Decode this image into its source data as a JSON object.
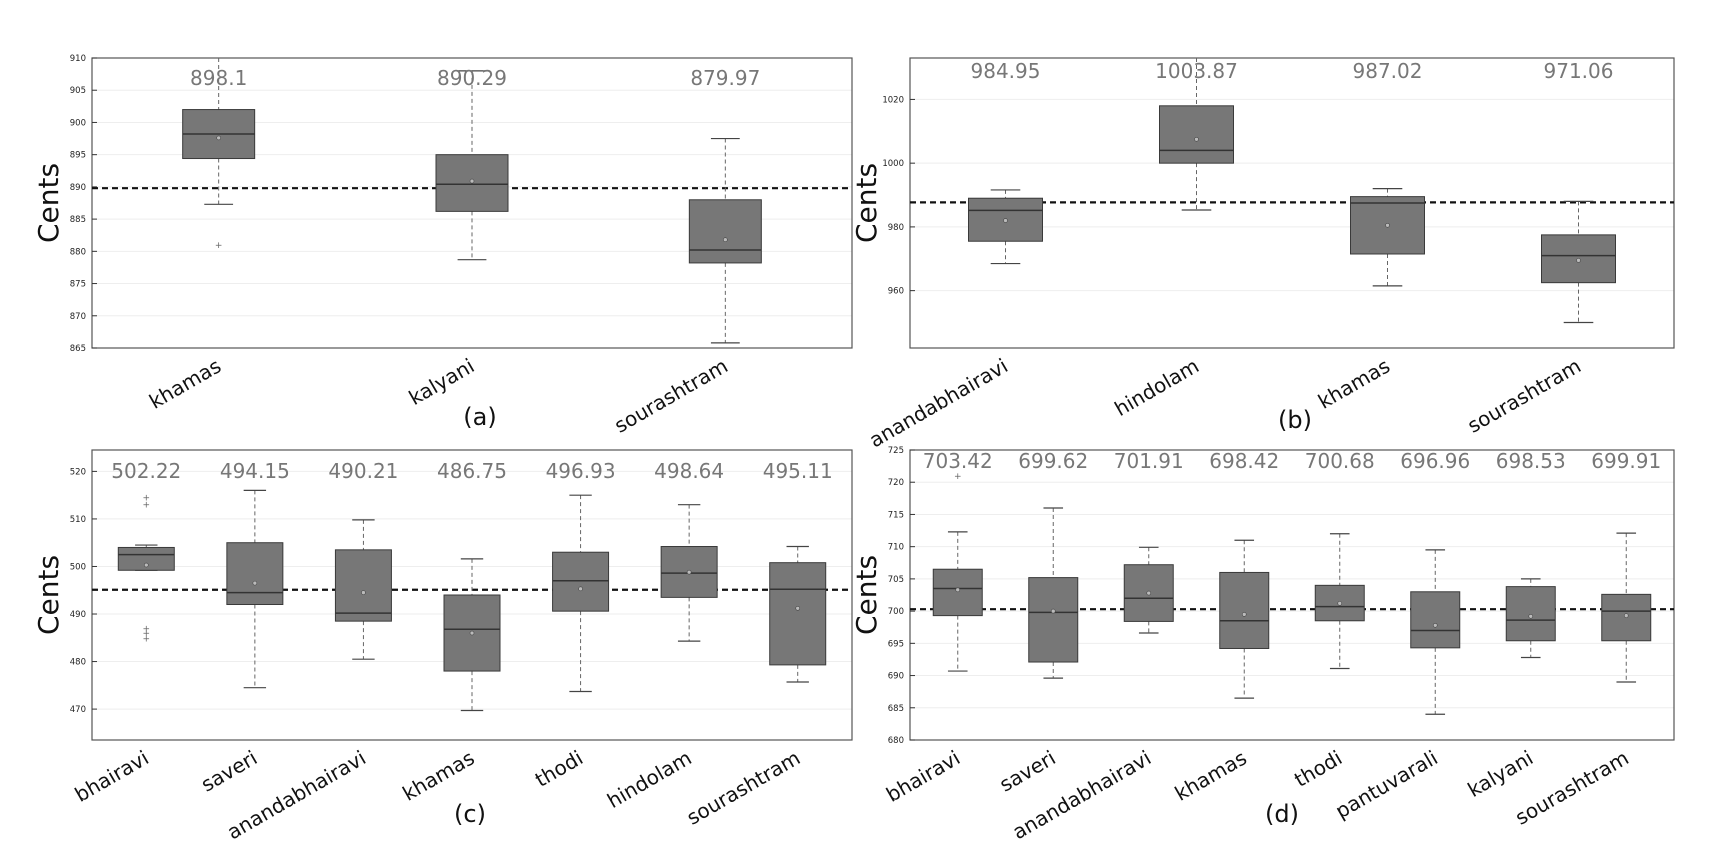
{
  "chart_data": [
    {
      "type": "box",
      "panel_label": "(a)",
      "ylabel": "Cents",
      "ylim": [
        865,
        910
      ],
      "yticks": [
        865,
        870,
        875,
        880,
        885,
        890,
        895,
        900,
        905,
        910
      ],
      "reference_line": 889.8,
      "categories": [
        "khamas",
        "kalyani",
        "sourashtram"
      ],
      "annotations": [
        "898.1",
        "890.29",
        "879.97"
      ],
      "boxes": [
        {
          "whisker_low": 887.3,
          "q1": 894.4,
          "median": 898.2,
          "q3": 902,
          "whisker_high": 911,
          "mean": 897.6,
          "fliers": [
            881
          ]
        },
        {
          "whisker_low": 878.7,
          "q1": 886.2,
          "median": 890.4,
          "q3": 895,
          "whisker_high": 908,
          "mean": 890.9,
          "fliers": []
        },
        {
          "whisker_low": 865.8,
          "q1": 878.2,
          "median": 880.2,
          "q3": 888,
          "whisker_high": 897.5,
          "mean": 881.8,
          "fliers": []
        }
      ]
    },
    {
      "type": "box",
      "panel_label": "(b)",
      "ylabel": "Cents",
      "ylim": [
        942,
        1033
      ],
      "yticks": [
        960,
        980,
        1000,
        1020
      ],
      "reference_line": 987.7,
      "categories": [
        "anandabhairavi",
        "hindolam",
        "khamas",
        "sourashtram"
      ],
      "annotations": [
        "984.95",
        "1003.87",
        "987.02",
        "971.06"
      ],
      "boxes": [
        {
          "whisker_low": 968.5,
          "q1": 975.5,
          "median": 985.2,
          "q3": 989,
          "whisker_high": 991.6,
          "mean": 982,
          "fliers": []
        },
        {
          "whisker_low": 985.3,
          "q1": 1000,
          "median": 1004,
          "q3": 1018,
          "whisker_high": 1036,
          "mean": 1007.5,
          "fliers": []
        },
        {
          "whisker_low": 961.5,
          "q1": 971.5,
          "median": 987.5,
          "q3": 989.5,
          "whisker_high": 992,
          "mean": 980.5,
          "fliers": []
        },
        {
          "whisker_low": 950,
          "q1": 962.5,
          "median": 971,
          "q3": 977.5,
          "whisker_high": 988,
          "mean": 969.5,
          "fliers": []
        }
      ]
    },
    {
      "type": "box",
      "panel_label": "(c)",
      "ylabel": "Cents",
      "ylim": [
        463.5,
        524.5
      ],
      "yticks": [
        470,
        480,
        490,
        500,
        510,
        520
      ],
      "reference_line": 495.1,
      "categories": [
        "bhairavi",
        "saveri",
        "anandabhairavi",
        "khamas",
        "thodi",
        "hindolam",
        "sourashtram"
      ],
      "annotations": [
        "502.22",
        "494.15",
        "490.21",
        "486.75",
        "496.93",
        "498.64",
        "495.11"
      ],
      "boxes": [
        {
          "whisker_low": 499.2,
          "q1": 499.2,
          "median": 502.5,
          "q3": 504,
          "whisker_high": 504.5,
          "mean": 500.3,
          "fliers": [
            514.5,
            513,
            487,
            486,
            484.8
          ]
        },
        {
          "whisker_low": 474.5,
          "q1": 492,
          "median": 494.5,
          "q3": 505,
          "whisker_high": 516,
          "mean": 496.5,
          "fliers": []
        },
        {
          "whisker_low": 480.5,
          "q1": 488.5,
          "median": 490.2,
          "q3": 503.5,
          "whisker_high": 509.8,
          "mean": 494.5,
          "fliers": []
        },
        {
          "whisker_low": 469.7,
          "q1": 478,
          "median": 486.8,
          "q3": 494,
          "whisker_high": 501.6,
          "mean": 486,
          "fliers": []
        },
        {
          "whisker_low": 473.7,
          "q1": 490.6,
          "median": 497,
          "q3": 503,
          "whisker_high": 515,
          "mean": 495.3,
          "fliers": []
        },
        {
          "whisker_low": 484.3,
          "q1": 493.5,
          "median": 498.6,
          "q3": 504.2,
          "whisker_high": 513,
          "mean": 498.8,
          "fliers": []
        },
        {
          "whisker_low": 475.7,
          "q1": 479.3,
          "median": 495.2,
          "q3": 500.8,
          "whisker_high": 504.2,
          "mean": 491.2,
          "fliers": []
        }
      ]
    },
    {
      "type": "box",
      "panel_label": "(d)",
      "ylabel": "Cents",
      "ylim": [
        680,
        725
      ],
      "yticks": [
        680,
        685,
        690,
        695,
        700,
        705,
        710,
        715,
        720,
        725
      ],
      "reference_line": 700.3,
      "categories": [
        "bhairavi",
        "saveri",
        "anandabhairavi",
        "khamas",
        "thodi",
        "pantuvarali",
        "kalyani",
        "sourashtram"
      ],
      "annotations": [
        "703.42",
        "699.62",
        "701.91",
        "698.42",
        "700.68",
        "696.96",
        "698.53",
        "699.91"
      ],
      "boxes": [
        {
          "whisker_low": 690.7,
          "q1": 699.3,
          "median": 703.5,
          "q3": 706.5,
          "whisker_high": 712.3,
          "mean": 703.3,
          "fliers": [
            721
          ]
        },
        {
          "whisker_low": 689.6,
          "q1": 692.1,
          "median": 699.8,
          "q3": 705.2,
          "whisker_high": 716,
          "mean": 700,
          "fliers": []
        },
        {
          "whisker_low": 696.6,
          "q1": 698.4,
          "median": 702,
          "q3": 707.2,
          "whisker_high": 709.9,
          "mean": 702.8,
          "fliers": []
        },
        {
          "whisker_low": 686.5,
          "q1": 694.2,
          "median": 698.5,
          "q3": 706,
          "whisker_high": 711,
          "mean": 699.5,
          "fliers": []
        },
        {
          "whisker_low": 691.1,
          "q1": 698.5,
          "median": 700.7,
          "q3": 704,
          "whisker_high": 712,
          "mean": 701.2,
          "fliers": []
        },
        {
          "whisker_low": 684,
          "q1": 694.3,
          "median": 697,
          "q3": 703,
          "whisker_high": 709.5,
          "mean": 697.8,
          "fliers": []
        },
        {
          "whisker_low": 692.8,
          "q1": 695.4,
          "median": 698.6,
          "q3": 703.8,
          "whisker_high": 705,
          "mean": 699.2,
          "fliers": []
        },
        {
          "whisker_low": 689,
          "q1": 695.4,
          "median": 700,
          "q3": 702.6,
          "whisker_high": 712.1,
          "mean": 699.3,
          "fliers": []
        }
      ]
    }
  ]
}
